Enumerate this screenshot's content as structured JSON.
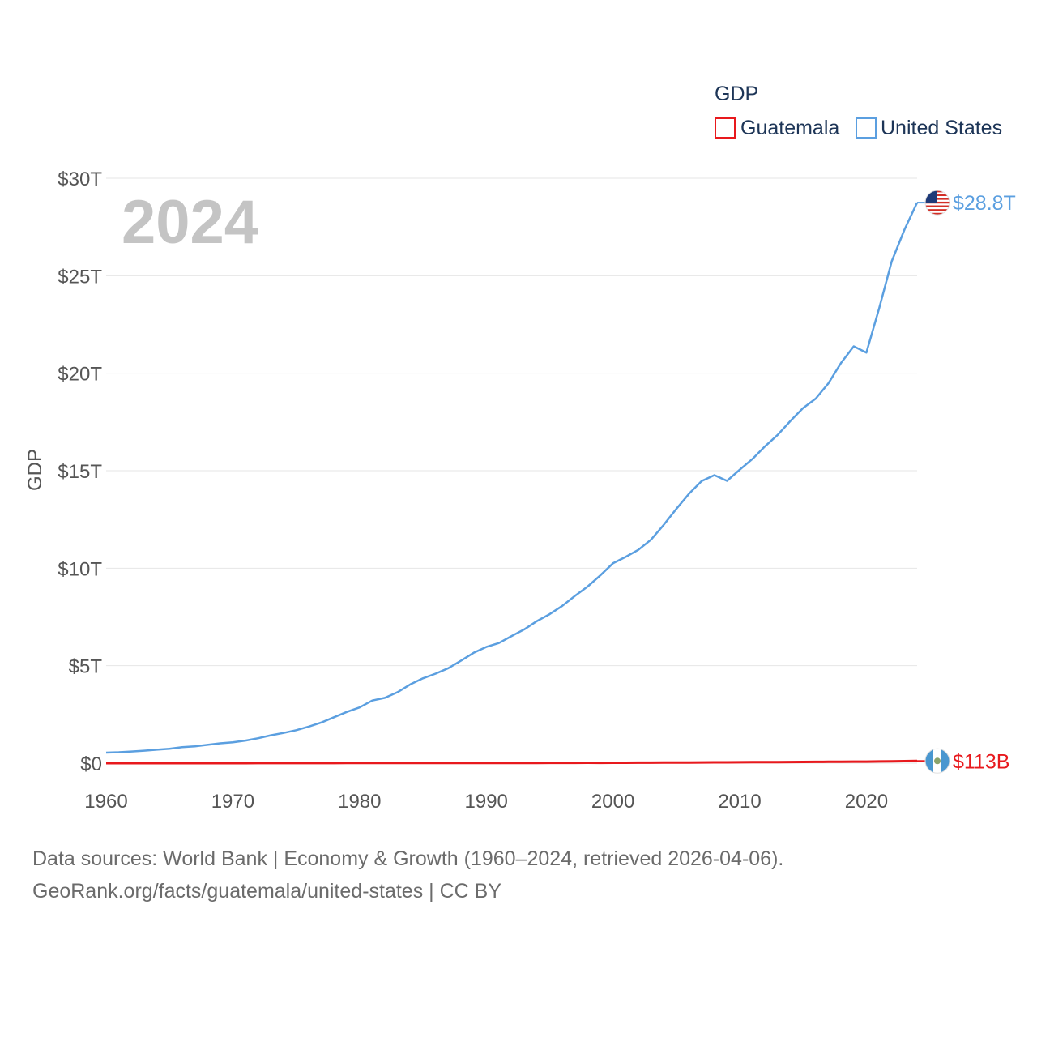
{
  "legend": {
    "title": "GDP"
  },
  "year_label": "2024",
  "footer": {
    "line1": "Data sources: World Bank | Economy & Growth (1960–2024, retrieved 2026-04-06).",
    "line2": "GeoRank.org/facts/guatemala/united-states | CC BY"
  },
  "chart_data": {
    "type": "line",
    "title": "",
    "xlabel": "",
    "ylabel": "GDP",
    "xlim": [
      1960,
      2024
    ],
    "ylim": [
      0,
      30
    ],
    "y_unit": "trillion USD",
    "x_ticks": [
      "1960",
      "1970",
      "1980",
      "1990",
      "2000",
      "2010",
      "2020"
    ],
    "y_ticks": [
      {
        "value": 0,
        "label": "$0"
      },
      {
        "value": 5,
        "label": "$5T"
      },
      {
        "value": 10,
        "label": "$10T"
      },
      {
        "value": 15,
        "label": "$15T"
      },
      {
        "value": 20,
        "label": "$20T"
      },
      {
        "value": 25,
        "label": "$25T"
      },
      {
        "value": 30,
        "label": "$30T"
      }
    ],
    "grid": true,
    "legend_position": "top-right",
    "x": [
      1960,
      1961,
      1962,
      1963,
      1964,
      1965,
      1966,
      1967,
      1968,
      1969,
      1970,
      1971,
      1972,
      1973,
      1974,
      1975,
      1976,
      1977,
      1978,
      1979,
      1980,
      1981,
      1982,
      1983,
      1984,
      1985,
      1986,
      1987,
      1988,
      1989,
      1990,
      1991,
      1992,
      1993,
      1994,
      1995,
      1996,
      1997,
      1998,
      1999,
      2000,
      2001,
      2002,
      2003,
      2004,
      2005,
      2006,
      2007,
      2008,
      2009,
      2010,
      2011,
      2012,
      2013,
      2014,
      2015,
      2016,
      2017,
      2018,
      2019,
      2020,
      2021,
      2022,
      2023,
      2024
    ],
    "series": [
      {
        "name": "Guatemala",
        "color": "#e8191d",
        "end_label": "$113B",
        "flag": "guatemala-flag",
        "values": [
          0.001,
          0.0011,
          0.0011,
          0.0012,
          0.0013,
          0.0013,
          0.0014,
          0.0015,
          0.0016,
          0.0017,
          0.0019,
          0.002,
          0.0022,
          0.0026,
          0.0032,
          0.0037,
          0.0044,
          0.0055,
          0.0061,
          0.0069,
          0.0079,
          0.0086,
          0.009,
          0.0092,
          0.0096,
          0.0112,
          0.0075,
          0.0071,
          0.0078,
          0.0083,
          0.0077,
          0.0095,
          0.0103,
          0.0113,
          0.0128,
          0.0146,
          0.0158,
          0.0178,
          0.0194,
          0.0183,
          0.0193,
          0.0211,
          0.0231,
          0.025,
          0.0272,
          0.0306,
          0.0339,
          0.0379,
          0.0422,
          0.042,
          0.0444,
          0.0488,
          0.0512,
          0.054,
          0.058,
          0.063,
          0.0661,
          0.0716,
          0.0733,
          0.077,
          0.0776,
          0.0861,
          0.0952,
          0.104,
          0.113
        ]
      },
      {
        "name": "United States",
        "color": "#5b9fe0",
        "end_label": "$28.8T",
        "flag": "us-flag",
        "values": [
          0.54,
          0.56,
          0.6,
          0.64,
          0.69,
          0.74,
          0.82,
          0.86,
          0.94,
          1.02,
          1.07,
          1.16,
          1.28,
          1.43,
          1.55,
          1.69,
          1.88,
          2.09,
          2.36,
          2.63,
          2.86,
          3.21,
          3.35,
          3.64,
          4.04,
          4.35,
          4.59,
          4.87,
          5.25,
          5.66,
          5.96,
          6.16,
          6.52,
          6.86,
          7.29,
          7.64,
          8.07,
          8.58,
          9.06,
          9.63,
          10.25,
          10.58,
          10.94,
          11.46,
          12.22,
          13.04,
          13.82,
          14.47,
          14.77,
          14.48,
          15.05,
          15.6,
          16.25,
          16.84,
          17.55,
          18.21,
          18.7,
          19.48,
          20.53,
          21.38,
          21.06,
          23.32,
          25.74,
          27.36,
          28.75
        ]
      }
    ]
  }
}
